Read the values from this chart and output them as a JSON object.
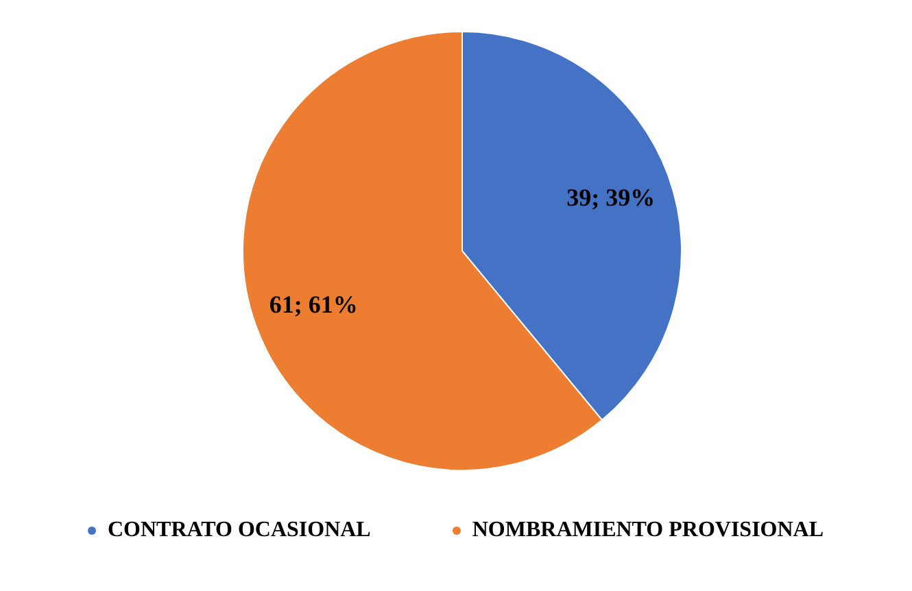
{
  "chart_data": {
    "type": "pie",
    "categories": [
      "CONTRATO OCASIONAL",
      "NOMBRAMIENTO PROVISIONAL"
    ],
    "values": [
      39,
      61
    ],
    "colors": [
      "#4472c4",
      "#ed7d31"
    ],
    "value_labels": [
      "39; 39%",
      "61; 61%"
    ],
    "legend": "bottom"
  }
}
